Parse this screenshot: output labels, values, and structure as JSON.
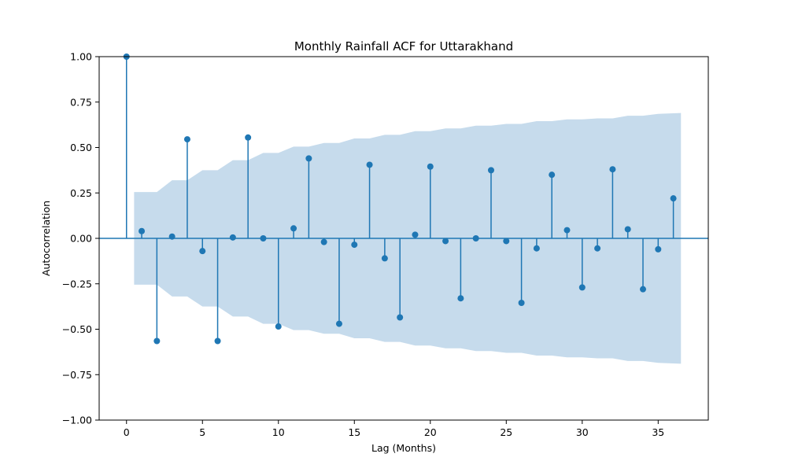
{
  "chart_data": {
    "type": "stem",
    "title": "Monthly Rainfall ACF for Uttarakhand",
    "xlabel": "Lag (Months)",
    "ylabel": "Autocorrelation",
    "xlim": [
      -1.8,
      38.3
    ],
    "ylim": [
      -1.0,
      1.0
    ],
    "x_ticks": [
      0,
      5,
      10,
      15,
      20,
      25,
      30,
      35
    ],
    "y_ticks": [
      -1.0,
      -0.75,
      -0.5,
      -0.25,
      0.0,
      0.25,
      0.5,
      0.75,
      1.0
    ],
    "y_tick_labels": [
      "−1.00",
      "−0.75",
      "−0.50",
      "−0.25",
      "0.00",
      "0.25",
      "0.50",
      "0.75",
      "1.00"
    ],
    "x_tick_labels": [
      "0",
      "5",
      "10",
      "15",
      "20",
      "25",
      "30",
      "35"
    ],
    "colors": {
      "stem": "#1f77b4",
      "confidence_band": "#c6dbec"
    },
    "series": [
      {
        "lags": [
          0,
          1,
          2,
          3,
          4,
          5,
          6,
          7,
          8,
          9,
          10,
          11,
          12,
          13,
          14,
          15,
          16,
          17,
          18,
          19,
          20,
          21,
          22,
          23,
          24,
          25,
          26,
          27,
          28,
          29,
          30,
          31,
          32,
          33,
          34,
          35,
          36
        ],
        "acf": [
          1.0,
          0.04,
          -0.565,
          0.01,
          0.545,
          -0.07,
          -0.565,
          0.005,
          0.555,
          0.0,
          -0.485,
          0.055,
          0.44,
          -0.02,
          -0.47,
          -0.035,
          0.405,
          -0.11,
          -0.435,
          0.02,
          0.395,
          -0.015,
          -0.33,
          0.0,
          0.375,
          -0.015,
          -0.355,
          -0.055,
          0.35,
          0.045,
          -0.27,
          -0.055,
          0.38,
          0.05,
          -0.28,
          -0.06,
          0.22
        ]
      }
    ],
    "confidence_band": {
      "lags": [
        0.5,
        1,
        2,
        3,
        4,
        5,
        6,
        7,
        8,
        9,
        10,
        11,
        12,
        13,
        14,
        15,
        16,
        17,
        18,
        19,
        20,
        21,
        22,
        23,
        24,
        25,
        26,
        27,
        28,
        29,
        30,
        31,
        32,
        33,
        34,
        35,
        36.5
      ],
      "upper": [
        0.255,
        0.255,
        0.255,
        0.32,
        0.32,
        0.375,
        0.375,
        0.43,
        0.43,
        0.47,
        0.47,
        0.505,
        0.505,
        0.525,
        0.525,
        0.55,
        0.55,
        0.57,
        0.57,
        0.59,
        0.59,
        0.605,
        0.605,
        0.62,
        0.62,
        0.63,
        0.63,
        0.645,
        0.645,
        0.655,
        0.655,
        0.66,
        0.66,
        0.675,
        0.675,
        0.685,
        0.69
      ]
    }
  }
}
